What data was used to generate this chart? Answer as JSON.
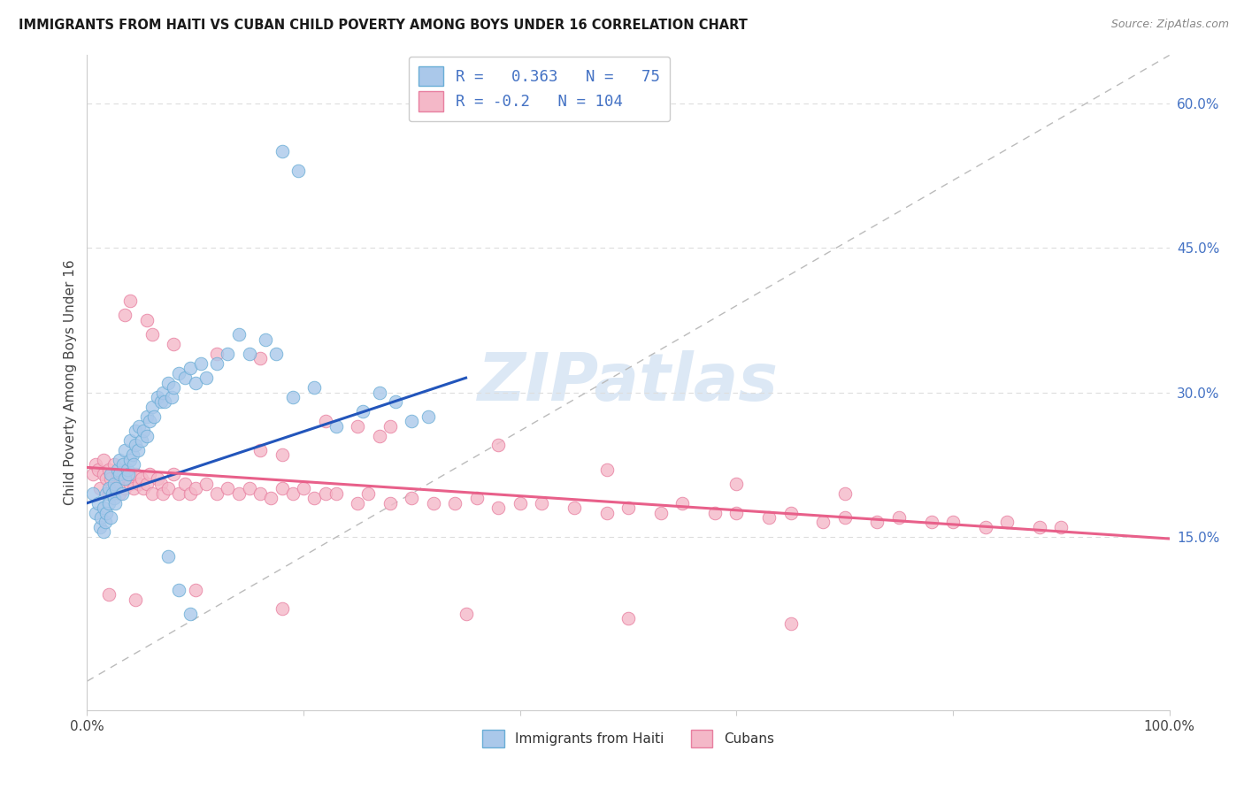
{
  "title": "IMMIGRANTS FROM HAITI VS CUBAN CHILD POVERTY AMONG BOYS UNDER 16 CORRELATION CHART",
  "source": "Source: ZipAtlas.com",
  "ylabel": "Child Poverty Among Boys Under 16",
  "right_yticks": [
    0.15,
    0.3,
    0.45,
    0.6
  ],
  "right_yticklabels": [
    "15.0%",
    "30.0%",
    "45.0%",
    "60.0%"
  ],
  "haiti_R": 0.363,
  "haiti_N": 75,
  "cuban_R": -0.2,
  "cuban_N": 104,
  "haiti_color": "#aac8ea",
  "haiti_edge_color": "#6aaed6",
  "cuban_color": "#f4b8c8",
  "cuban_edge_color": "#e87fa0",
  "haiti_line_color": "#2255bb",
  "cuban_line_color": "#e8608a",
  "ref_line_color": "#bbbbbb",
  "watermark": "ZIPatlas",
  "watermark_color": "#dce8f5",
  "background_color": "#ffffff",
  "xlim": [
    0.0,
    1.0
  ],
  "ylim": [
    -0.03,
    0.65
  ],
  "haiti_scatter_x": [
    0.005,
    0.008,
    0.01,
    0.012,
    0.013,
    0.015,
    0.015,
    0.017,
    0.018,
    0.018,
    0.02,
    0.02,
    0.022,
    0.022,
    0.023,
    0.025,
    0.025,
    0.026,
    0.027,
    0.028,
    0.03,
    0.03,
    0.032,
    0.033,
    0.035,
    0.035,
    0.037,
    0.038,
    0.04,
    0.04,
    0.042,
    0.043,
    0.045,
    0.045,
    0.047,
    0.048,
    0.05,
    0.052,
    0.055,
    0.055,
    0.058,
    0.06,
    0.062,
    0.065,
    0.068,
    0.07,
    0.072,
    0.075,
    0.078,
    0.08,
    0.085,
    0.09,
    0.095,
    0.1,
    0.105,
    0.11,
    0.12,
    0.13,
    0.14,
    0.15,
    0.165,
    0.175,
    0.19,
    0.21,
    0.23,
    0.255,
    0.27,
    0.285,
    0.3,
    0.315,
    0.18,
    0.195,
    0.075,
    0.085,
    0.095
  ],
  "haiti_scatter_y": [
    0.195,
    0.175,
    0.185,
    0.16,
    0.17,
    0.155,
    0.18,
    0.165,
    0.195,
    0.175,
    0.185,
    0.2,
    0.17,
    0.215,
    0.195,
    0.19,
    0.205,
    0.185,
    0.2,
    0.22,
    0.215,
    0.23,
    0.195,
    0.225,
    0.21,
    0.24,
    0.22,
    0.215,
    0.23,
    0.25,
    0.235,
    0.225,
    0.245,
    0.26,
    0.24,
    0.265,
    0.25,
    0.26,
    0.275,
    0.255,
    0.27,
    0.285,
    0.275,
    0.295,
    0.29,
    0.3,
    0.29,
    0.31,
    0.295,
    0.305,
    0.32,
    0.315,
    0.325,
    0.31,
    0.33,
    0.315,
    0.33,
    0.34,
    0.36,
    0.34,
    0.355,
    0.34,
    0.295,
    0.305,
    0.265,
    0.28,
    0.3,
    0.29,
    0.27,
    0.275,
    0.55,
    0.53,
    0.13,
    0.095,
    0.07
  ],
  "cuban_scatter_x": [
    0.005,
    0.008,
    0.01,
    0.012,
    0.015,
    0.015,
    0.018,
    0.02,
    0.02,
    0.022,
    0.025,
    0.025,
    0.028,
    0.03,
    0.03,
    0.033,
    0.035,
    0.035,
    0.038,
    0.04,
    0.04,
    0.043,
    0.045,
    0.048,
    0.05,
    0.052,
    0.055,
    0.058,
    0.06,
    0.065,
    0.068,
    0.07,
    0.075,
    0.08,
    0.085,
    0.09,
    0.095,
    0.1,
    0.11,
    0.12,
    0.13,
    0.14,
    0.15,
    0.16,
    0.17,
    0.18,
    0.19,
    0.2,
    0.21,
    0.22,
    0.23,
    0.25,
    0.26,
    0.28,
    0.3,
    0.32,
    0.34,
    0.36,
    0.38,
    0.4,
    0.42,
    0.45,
    0.48,
    0.5,
    0.53,
    0.55,
    0.58,
    0.6,
    0.63,
    0.65,
    0.68,
    0.7,
    0.73,
    0.75,
    0.78,
    0.8,
    0.83,
    0.85,
    0.88,
    0.9,
    0.16,
    0.18,
    0.25,
    0.27,
    0.035,
    0.04,
    0.055,
    0.06,
    0.08,
    0.12,
    0.16,
    0.22,
    0.28,
    0.38,
    0.48,
    0.6,
    0.7,
    0.02,
    0.045,
    0.1,
    0.18,
    0.35,
    0.5,
    0.65
  ],
  "cuban_scatter_y": [
    0.215,
    0.225,
    0.22,
    0.2,
    0.215,
    0.23,
    0.21,
    0.195,
    0.22,
    0.21,
    0.225,
    0.2,
    0.215,
    0.205,
    0.195,
    0.22,
    0.215,
    0.2,
    0.21,
    0.205,
    0.215,
    0.2,
    0.215,
    0.205,
    0.21,
    0.2,
    0.205,
    0.215,
    0.195,
    0.21,
    0.205,
    0.195,
    0.2,
    0.215,
    0.195,
    0.205,
    0.195,
    0.2,
    0.205,
    0.195,
    0.2,
    0.195,
    0.2,
    0.195,
    0.19,
    0.2,
    0.195,
    0.2,
    0.19,
    0.195,
    0.195,
    0.185,
    0.195,
    0.185,
    0.19,
    0.185,
    0.185,
    0.19,
    0.18,
    0.185,
    0.185,
    0.18,
    0.175,
    0.18,
    0.175,
    0.185,
    0.175,
    0.175,
    0.17,
    0.175,
    0.165,
    0.17,
    0.165,
    0.17,
    0.165,
    0.165,
    0.16,
    0.165,
    0.16,
    0.16,
    0.24,
    0.235,
    0.265,
    0.255,
    0.38,
    0.395,
    0.375,
    0.36,
    0.35,
    0.34,
    0.335,
    0.27,
    0.265,
    0.245,
    0.22,
    0.205,
    0.195,
    0.09,
    0.085,
    0.095,
    0.075,
    0.07,
    0.065,
    0.06
  ]
}
